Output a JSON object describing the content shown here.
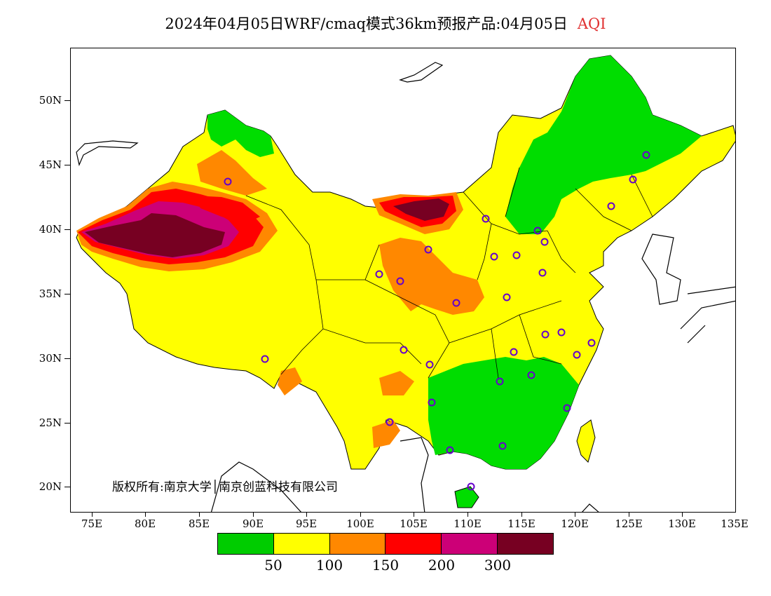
{
  "title": {
    "main": "2024年04月05日WRF/cmaq模式36km预报产品:04月05日",
    "variable": "AQI",
    "variable_color": "#e03030"
  },
  "axes": {
    "y_labels": [
      "50N",
      "45N",
      "40N",
      "35N",
      "30N",
      "25N",
      "20N"
    ],
    "x_labels": [
      "75E",
      "80E",
      "85E",
      "90E",
      "95E",
      "100E",
      "105E",
      "110E",
      "115E",
      "120E",
      "125E",
      "130E",
      "135E"
    ],
    "lon_range": [
      73,
      135
    ],
    "lat_range": [
      18,
      54
    ]
  },
  "copyright": "版权所有:南京大学│南京创蓝科技有限公司",
  "legend": {
    "colors": [
      "#00cc00",
      "#ffff00",
      "#ff8800",
      "#ff0000",
      "#cc0077",
      "#770022"
    ],
    "labels": [
      "50",
      "100",
      "150",
      "200",
      "300"
    ]
  },
  "map": {
    "region": "China",
    "fill_colors": {
      "green": "#00dd00",
      "yellow": "#ffff00",
      "orange": "#ff8800",
      "red": "#ff0000",
      "magenta": "#cc0077",
      "maroon": "#770022"
    }
  }
}
